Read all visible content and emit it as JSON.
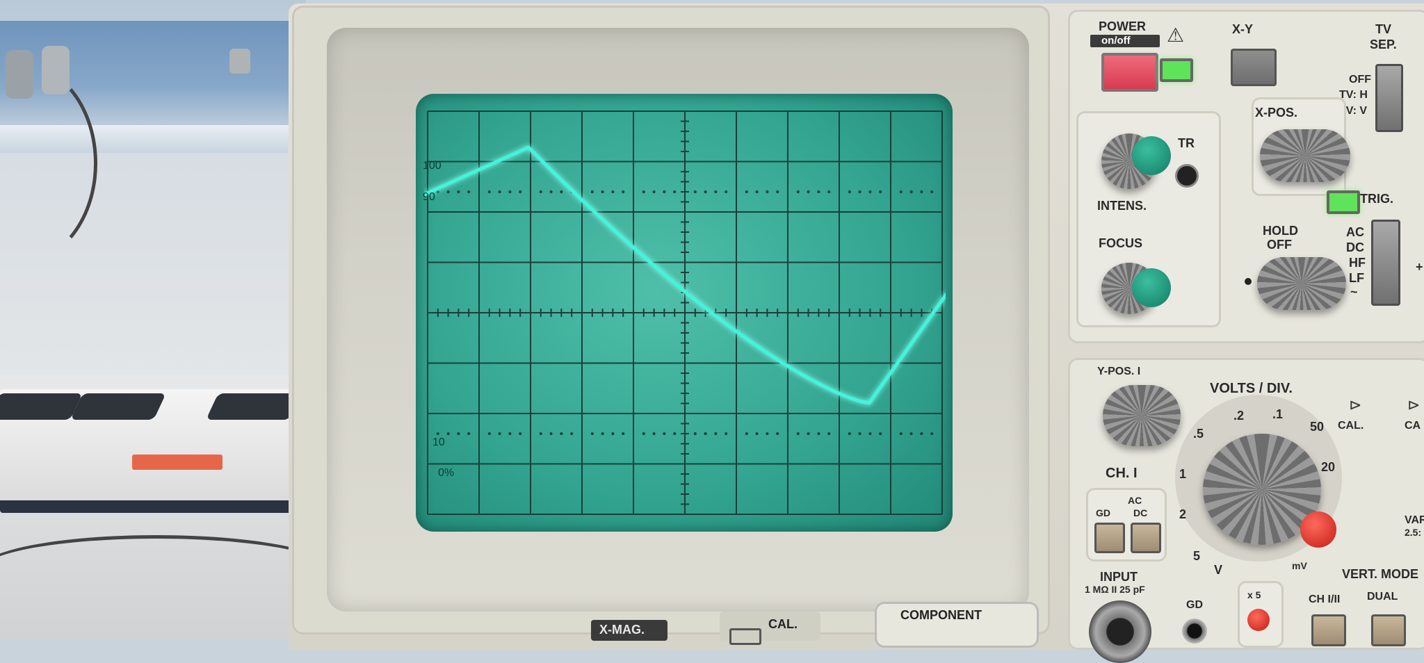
{
  "scene": {
    "subject": "analog oscilloscope"
  },
  "screen": {
    "labels": {
      "l100": "100",
      "l90": "90",
      "l10": "10",
      "l0": "0%"
    },
    "trace_color": "#3ff5dc",
    "phosphor_color": "#34a893"
  },
  "panel": {
    "power": {
      "label": "POWER",
      "sub": "on/off",
      "warning_icon": "warning-triangle-icon"
    },
    "xy": "X-Y",
    "tv_sep": {
      "title1": "TV",
      "title2": "SEP.",
      "off": "OFF",
      "tvh": "TV: H",
      "tvv": "TV: V"
    },
    "tr": "TR",
    "intens": "INTENS.",
    "focus": "FOCUS",
    "xpos": "X-POS.",
    "trig": "TRIG.",
    "hold_off": {
      "l1": "HOLD",
      "l2": "OFF"
    },
    "coupling": {
      "ac": "AC",
      "dc": "DC",
      "hf": "HF",
      "lf": "LF",
      "tilde": "~"
    },
    "plus": "+",
    "ypos": "Y-POS. I",
    "volts_div": "VOLTS / DIV.",
    "vdiv_values": {
      "v5": ".5",
      "v2": ".2",
      "v1": ".1",
      "v50": "50",
      "v20": "20",
      "one": "1",
      "two": "2",
      "five": "5",
      "volt": "V",
      "mv": "mV"
    },
    "cal": "CAL.",
    "cal2": "CA",
    "ch1": "CH. I",
    "gd": "GD",
    "ac": "AC",
    "dc": "DC",
    "input": "INPUT",
    "input_spec": "1 MΩ II 25 pF",
    "gd2": "GD",
    "x5": "x 5",
    "var": "VAR",
    "var_sub": "2.5:",
    "vert_mode": "VERT. MODE",
    "ch12": "CH I/II",
    "dual": "DUAL",
    "xmag": "X-MAG.",
    "cal_bottom": "CAL.",
    "component": "COMPONENT"
  }
}
